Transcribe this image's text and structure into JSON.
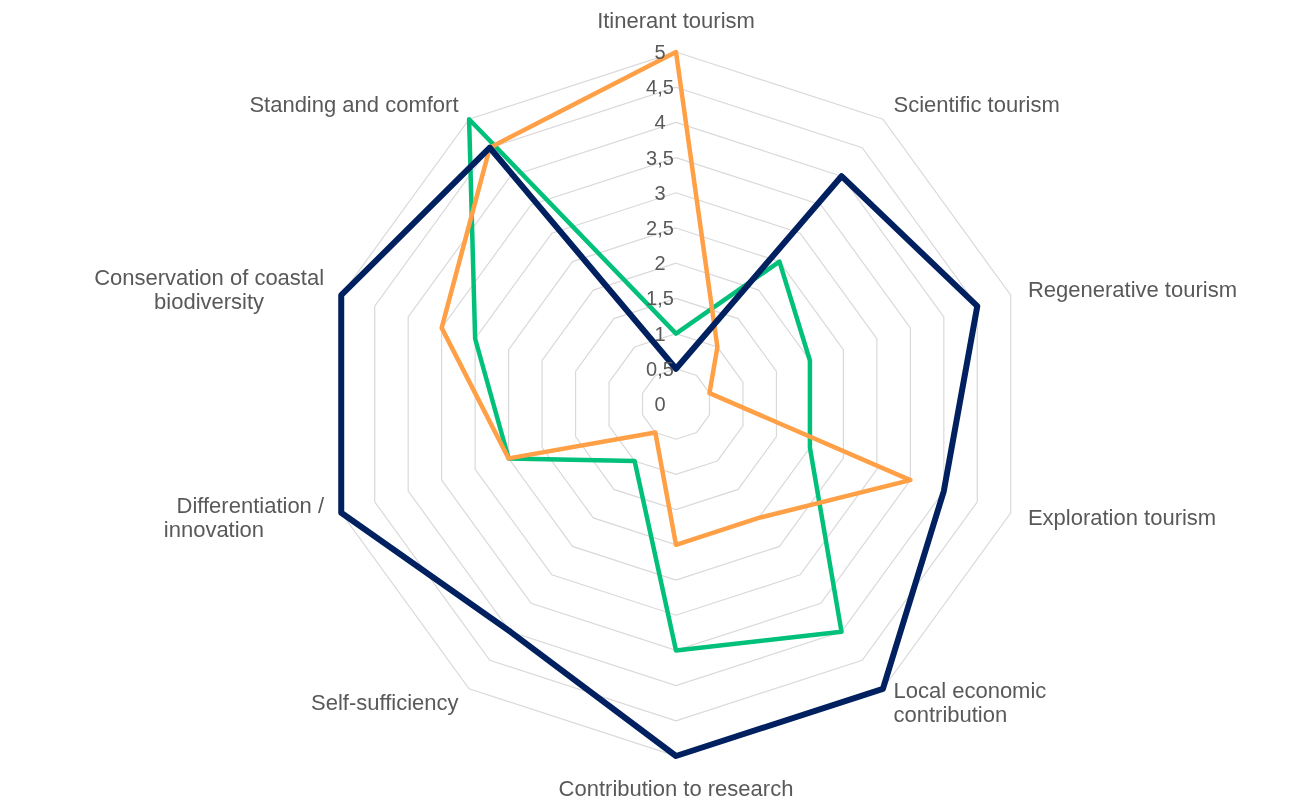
{
  "chart_data": {
    "type": "radar",
    "categories": [
      "Itinerant tourism",
      "Scientific tourism",
      "Regenerative tourism",
      "Exploration tourism",
      "Local economic contribution",
      "Contribution to research",
      "Self-sufficiency",
      "Differentiation / innovation",
      "Conservation of coastal biodiversity",
      "Standing and comfort"
    ],
    "series": [
      {
        "color": "#00c07a",
        "values": [
          1,
          2.5,
          2,
          2,
          4,
          3.5,
          1,
          2.5,
          3,
          5
        ]
      },
      {
        "color": "#ff9f46",
        "values": [
          5,
          1,
          0.5,
          3.5,
          2,
          2,
          0.5,
          2.5,
          3.5,
          4.5
        ]
      },
      {
        "color": "#002060",
        "values": [
          0.5,
          4,
          4.5,
          4,
          5,
          5,
          4,
          5,
          5,
          4.5
        ]
      }
    ],
    "ylim": [
      0,
      5
    ],
    "yticks": [
      0,
      {
        "value": 0.5,
        "label": "0,5"
      },
      1,
      {
        "value": 1.5,
        "label": "1,5"
      },
      2,
      {
        "value": 2.5,
        "label": "2,5"
      },
      3,
      {
        "value": 3.5,
        "label": "3,5"
      },
      4,
      {
        "value": 4.5,
        "label": "4,5"
      },
      5
    ],
    "grid": true,
    "marker": "none",
    "line_style": "solid"
  }
}
